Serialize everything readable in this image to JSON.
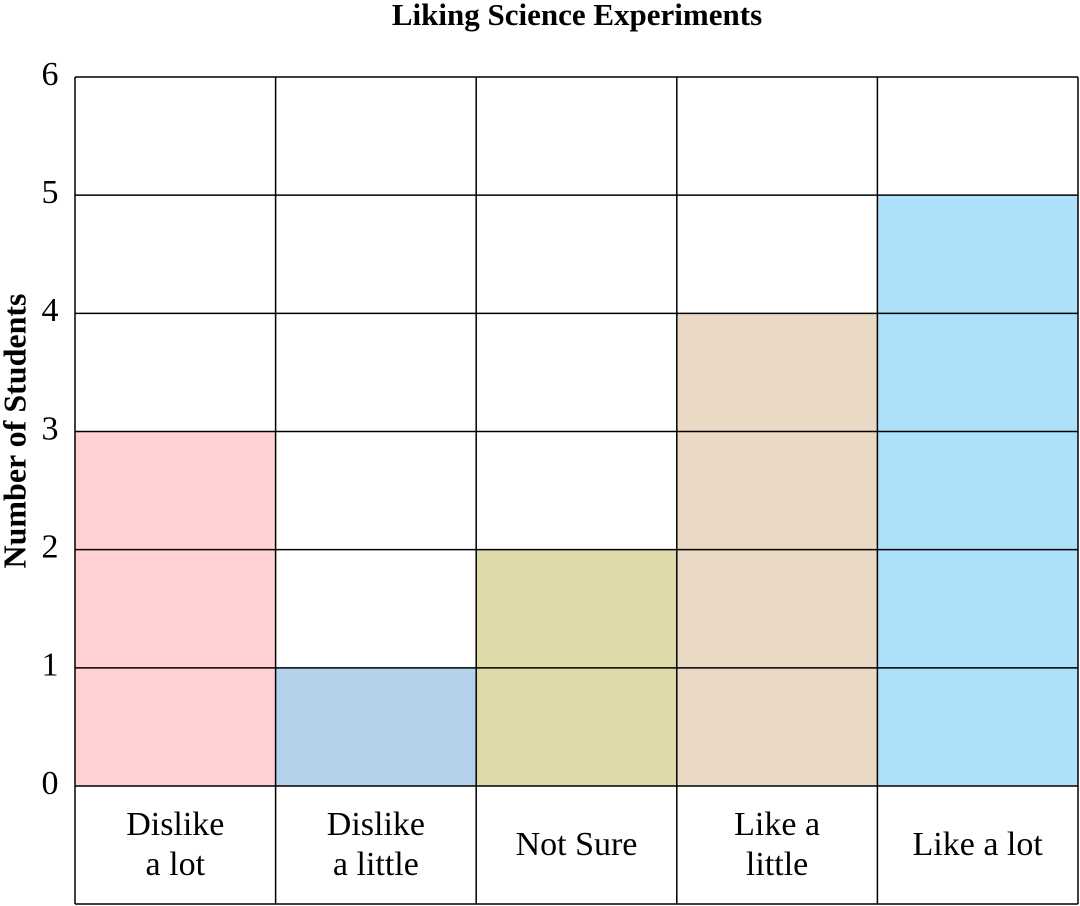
{
  "chart_data": {
    "type": "bar",
    "title": "Liking Science Experiments",
    "y_label": "Number of Students",
    "categories": [
      "Dislike\na lot",
      "Dislike\na little",
      "Not Sure",
      "Like a\nlittle",
      "Like a lot"
    ],
    "values": [
      3,
      1,
      2,
      4,
      5
    ],
    "colors": [
      "#ffd1d3",
      "#b3d1ea",
      "#ddd9a8",
      "#ead9c5",
      "#aee0fa"
    ],
    "ylim": [
      0,
      6
    ],
    "yticks": [
      0,
      1,
      2,
      3,
      4,
      5,
      6
    ],
    "grid": true
  }
}
